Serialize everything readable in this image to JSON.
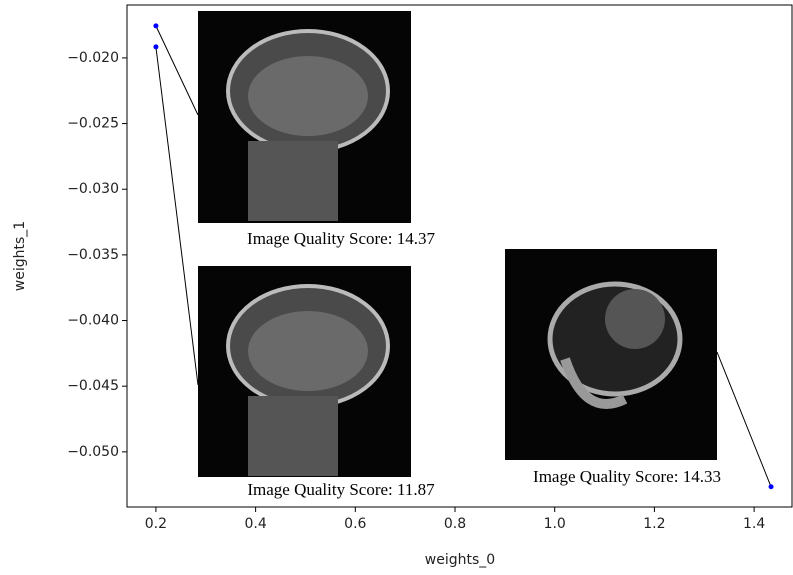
{
  "chart_data": {
    "type": "scatter",
    "x_label": "weights_0",
    "y_label": "weights_1",
    "x": [
      0.2,
      0.2,
      1.434
    ],
    "values": [
      -0.01756,
      -0.01916,
      -0.05266
    ],
    "color": "#0000ff",
    "xlim": [
      0.142,
      1.476
    ],
    "ylim": [
      -0.0542,
      -0.01597
    ],
    "xticks": [
      0.2,
      0.4,
      0.6,
      0.8,
      {
        "value": 1.0,
        "label": "1.0"
      },
      1.2,
      1.4
    ],
    "yticks": [
      {
        "value": -0.02,
        "label": "−0.020"
      },
      {
        "value": -0.025,
        "label": "−0.025"
      },
      {
        "value": -0.03,
        "label": "−0.030"
      },
      {
        "value": -0.035,
        "label": "−0.035"
      },
      {
        "value": -0.04,
        "label": "−0.040"
      },
      {
        "value": -0.045,
        "label": "−0.045"
      },
      {
        "value": -0.05,
        "label": "−0.050"
      }
    ],
    "annotations": [
      "Image Quality Score: 14.37",
      "Image Quality Score: 11.87",
      "Image Quality Score: 14.33"
    ]
  }
}
